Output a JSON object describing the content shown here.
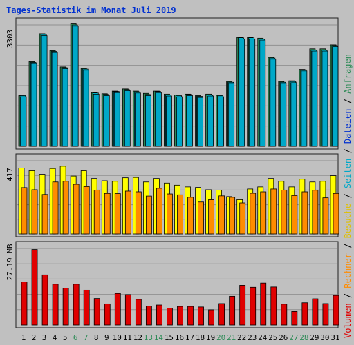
{
  "title": "Tages-Statistik im Monat Juli 2019",
  "colors": {
    "background": "#c0c0c0",
    "panel_border": "#202020",
    "grid": "#909090",
    "anfragen": "#2e8b57",
    "dateien": "#00e0f8",
    "seiten": "#00a8c8",
    "besuche": "#ffff00",
    "rechner": "#ff8c00",
    "volumen": "#e00000",
    "title": "#0030d0",
    "weekend_label": "#2e8b57"
  },
  "legend": [
    {
      "label": "Volumen",
      "color": "#e00000"
    },
    {
      "label": "Rechner",
      "color": "#ff8c00"
    },
    {
      "label": "Besuche",
      "color": "#e0c000"
    },
    {
      "label": "Seiten",
      "color": "#00a8c8"
    },
    {
      "label": "Dateien",
      "color": "#0030d0"
    },
    {
      "label": "Anfragen",
      "color": "#2e8b57"
    }
  ],
  "legend_separator": " / ",
  "chart_data": {
    "type": "bar",
    "title": "Tages-Statistik im Monat Juli 2019",
    "categories": [
      "1",
      "2",
      "3",
      "4",
      "5",
      "6",
      "7",
      "8",
      "9",
      "10",
      "11",
      "12",
      "13",
      "14",
      "15",
      "16",
      "17",
      "18",
      "19",
      "20",
      "21",
      "22",
      "23",
      "24",
      "25",
      "26",
      "27",
      "28",
      "29",
      "30",
      "31"
    ],
    "weekend_days": [
      "6",
      "7",
      "13",
      "14",
      "20",
      "21",
      "27",
      "28"
    ],
    "panels": [
      {
        "name": "requests",
        "max_label": "3303",
        "ymax": 3303,
        "series": [
          {
            "name": "Anfragen",
            "values": [
              1380,
              2300,
              3060,
              2600,
              2160,
              3330,
              2120,
              1460,
              1430,
              1500,
              1560,
              1500,
              1440,
              1500,
              1420,
              1400,
              1420,
              1380,
              1420,
              1390,
              1760,
              2960,
              2960,
              2940,
              2420,
              1760,
              1780,
              2090,
              2650,
              2650,
              2760
            ]
          },
          {
            "name": "Dateien",
            "values": [
              1380,
              2280,
              3040,
              2580,
              2140,
              3300,
              2100,
              1450,
              1410,
              1490,
              1540,
              1480,
              1410,
              1490,
              1400,
              1380,
              1410,
              1360,
              1400,
              1380,
              1740,
              2950,
              2950,
              2920,
              2400,
              1740,
              1760,
              2080,
              2620,
              2620,
              2740
            ]
          },
          {
            "name": "Seiten",
            "values": [
              1350,
              2250,
              3010,
              2550,
              2110,
              3270,
              2070,
              1420,
              1380,
              1460,
              1510,
              1450,
              1380,
              1460,
              1370,
              1350,
              1380,
              1330,
              1370,
              1350,
              1710,
              2920,
              2920,
              2890,
              2370,
              1710,
              1730,
              2050,
              2590,
              2590,
              2710
            ]
          }
        ]
      },
      {
        "name": "visits",
        "max_label": "417",
        "ymax": 417,
        "series": [
          {
            "name": "Besuche",
            "values": [
              376,
              360,
              340,
              373,
              386,
              330,
              360,
              316,
              303,
              300,
              320,
              322,
              296,
              316,
              290,
              278,
              268,
              265,
              252,
              250,
              213,
              195,
              256,
              268,
              316,
              300,
              268,
              312,
              296,
              300,
              332
            ]
          },
          {
            "name": "Rechner",
            "values": [
              264,
              252,
              225,
              296,
              300,
              283,
              270,
              250,
              231,
              230,
              244,
              240,
              216,
              260,
              228,
              223,
              209,
              182,
              195,
              217,
              209,
              177,
              232,
              240,
              256,
              250,
              219,
              240,
              249,
              206,
              231
            ]
          }
        ]
      },
      {
        "name": "volume",
        "max_label": "27.19 MB",
        "ymax": 27.19,
        "series": [
          {
            "name": "Volumen",
            "values": [
              15.3,
              26.8,
              17.8,
              14.5,
              13.1,
              14.5,
              12.4,
              9.4,
              7.5,
              11.2,
              10.8,
              9.1,
              6.7,
              7.1,
              6.0,
              6.6,
              6.6,
              6.4,
              5.4,
              7.6,
              10.2,
              14.1,
              13.4,
              14.9,
              13.5,
              7.4,
              4.8,
              7.9,
              9.3,
              7.6,
              10.5
            ]
          }
        ]
      }
    ]
  }
}
